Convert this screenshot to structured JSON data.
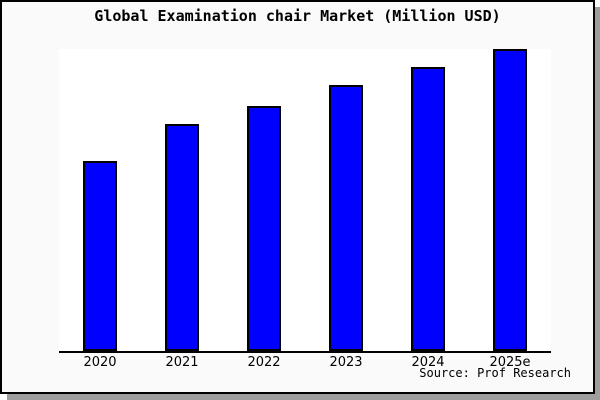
{
  "figure": {
    "title": "Global Examination chair Market (Million USD)",
    "source": "Source: Prof Research"
  },
  "colors": {
    "bar_fill": "#0000ff",
    "bar_edge": "#000000",
    "figure_bg": "#fafafa",
    "plot_bg": "#ffffff",
    "axis_line": "#000000",
    "figure_border": "#000000",
    "drop_shadow": "#9e9e9e",
    "text": "#000000"
  },
  "chart_data": {
    "type": "bar",
    "title": "Global Examination chair Market (Million USD)",
    "categories": [
      "2020",
      "2021",
      "2022",
      "2023",
      "2024",
      "2025e"
    ],
    "values": [
      63,
      75,
      81,
      88,
      94,
      100
    ],
    "note": "No y-axis ticks, labels or gridlines are shown; values are relative estimates from bar heights indexed to 2025e = 100",
    "xlabel": "",
    "ylabel": "",
    "ylim": [
      0,
      100
    ],
    "grid": false,
    "legend": false,
    "annotations": [
      "Source: Prof Research"
    ]
  }
}
